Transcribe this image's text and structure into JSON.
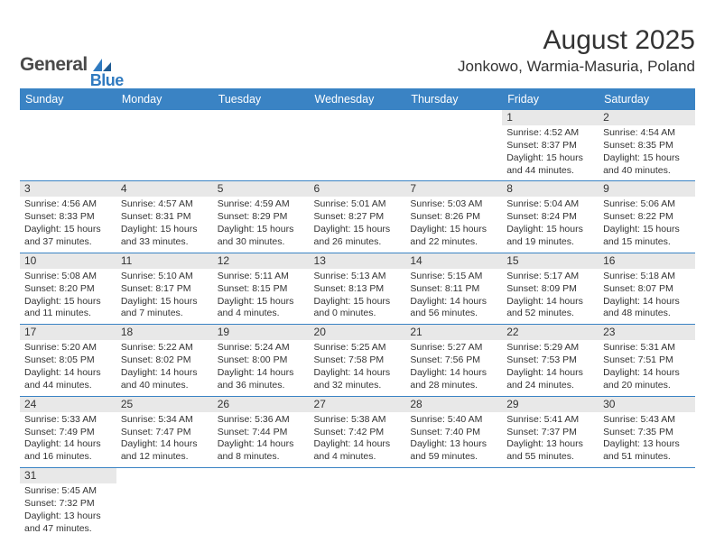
{
  "logo": {
    "part1": "General",
    "part2": "Blue"
  },
  "title": "August 2025",
  "location": "Jonkowo, Warmia-Masuria, Poland",
  "colors": {
    "header_bg": "#3a83c4",
    "header_text": "#ffffff",
    "daynum_bg": "#e8e8e8",
    "row_divider": "#3a83c4",
    "body_text": "#333333",
    "logo_gray": "#4a4a4a",
    "logo_blue": "#2f7ac0"
  },
  "weekday_labels": [
    "Sunday",
    "Monday",
    "Tuesday",
    "Wednesday",
    "Thursday",
    "Friday",
    "Saturday"
  ],
  "weeks": [
    [
      null,
      null,
      null,
      null,
      null,
      {
        "n": "1",
        "sr": "4:52 AM",
        "ss": "8:37 PM",
        "dl": "15 hours and 44 minutes."
      },
      {
        "n": "2",
        "sr": "4:54 AM",
        "ss": "8:35 PM",
        "dl": "15 hours and 40 minutes."
      }
    ],
    [
      {
        "n": "3",
        "sr": "4:56 AM",
        "ss": "8:33 PM",
        "dl": "15 hours and 37 minutes."
      },
      {
        "n": "4",
        "sr": "4:57 AM",
        "ss": "8:31 PM",
        "dl": "15 hours and 33 minutes."
      },
      {
        "n": "5",
        "sr": "4:59 AM",
        "ss": "8:29 PM",
        "dl": "15 hours and 30 minutes."
      },
      {
        "n": "6",
        "sr": "5:01 AM",
        "ss": "8:27 PM",
        "dl": "15 hours and 26 minutes."
      },
      {
        "n": "7",
        "sr": "5:03 AM",
        "ss": "8:26 PM",
        "dl": "15 hours and 22 minutes."
      },
      {
        "n": "8",
        "sr": "5:04 AM",
        "ss": "8:24 PM",
        "dl": "15 hours and 19 minutes."
      },
      {
        "n": "9",
        "sr": "5:06 AM",
        "ss": "8:22 PM",
        "dl": "15 hours and 15 minutes."
      }
    ],
    [
      {
        "n": "10",
        "sr": "5:08 AM",
        "ss": "8:20 PM",
        "dl": "15 hours and 11 minutes."
      },
      {
        "n": "11",
        "sr": "5:10 AM",
        "ss": "8:17 PM",
        "dl": "15 hours and 7 minutes."
      },
      {
        "n": "12",
        "sr": "5:11 AM",
        "ss": "8:15 PM",
        "dl": "15 hours and 4 minutes."
      },
      {
        "n": "13",
        "sr": "5:13 AM",
        "ss": "8:13 PM",
        "dl": "15 hours and 0 minutes."
      },
      {
        "n": "14",
        "sr": "5:15 AM",
        "ss": "8:11 PM",
        "dl": "14 hours and 56 minutes."
      },
      {
        "n": "15",
        "sr": "5:17 AM",
        "ss": "8:09 PM",
        "dl": "14 hours and 52 minutes."
      },
      {
        "n": "16",
        "sr": "5:18 AM",
        "ss": "8:07 PM",
        "dl": "14 hours and 48 minutes."
      }
    ],
    [
      {
        "n": "17",
        "sr": "5:20 AM",
        "ss": "8:05 PM",
        "dl": "14 hours and 44 minutes."
      },
      {
        "n": "18",
        "sr": "5:22 AM",
        "ss": "8:02 PM",
        "dl": "14 hours and 40 minutes."
      },
      {
        "n": "19",
        "sr": "5:24 AM",
        "ss": "8:00 PM",
        "dl": "14 hours and 36 minutes."
      },
      {
        "n": "20",
        "sr": "5:25 AM",
        "ss": "7:58 PM",
        "dl": "14 hours and 32 minutes."
      },
      {
        "n": "21",
        "sr": "5:27 AM",
        "ss": "7:56 PM",
        "dl": "14 hours and 28 minutes."
      },
      {
        "n": "22",
        "sr": "5:29 AM",
        "ss": "7:53 PM",
        "dl": "14 hours and 24 minutes."
      },
      {
        "n": "23",
        "sr": "5:31 AM",
        "ss": "7:51 PM",
        "dl": "14 hours and 20 minutes."
      }
    ],
    [
      {
        "n": "24",
        "sr": "5:33 AM",
        "ss": "7:49 PM",
        "dl": "14 hours and 16 minutes."
      },
      {
        "n": "25",
        "sr": "5:34 AM",
        "ss": "7:47 PM",
        "dl": "14 hours and 12 minutes."
      },
      {
        "n": "26",
        "sr": "5:36 AM",
        "ss": "7:44 PM",
        "dl": "14 hours and 8 minutes."
      },
      {
        "n": "27",
        "sr": "5:38 AM",
        "ss": "7:42 PM",
        "dl": "14 hours and 4 minutes."
      },
      {
        "n": "28",
        "sr": "5:40 AM",
        "ss": "7:40 PM",
        "dl": "13 hours and 59 minutes."
      },
      {
        "n": "29",
        "sr": "5:41 AM",
        "ss": "7:37 PM",
        "dl": "13 hours and 55 minutes."
      },
      {
        "n": "30",
        "sr": "5:43 AM",
        "ss": "7:35 PM",
        "dl": "13 hours and 51 minutes."
      }
    ],
    [
      {
        "n": "31",
        "sr": "5:45 AM",
        "ss": "7:32 PM",
        "dl": "13 hours and 47 minutes."
      },
      null,
      null,
      null,
      null,
      null,
      null
    ]
  ],
  "labels": {
    "sunrise": "Sunrise:",
    "sunset": "Sunset:",
    "daylight": "Daylight:"
  }
}
